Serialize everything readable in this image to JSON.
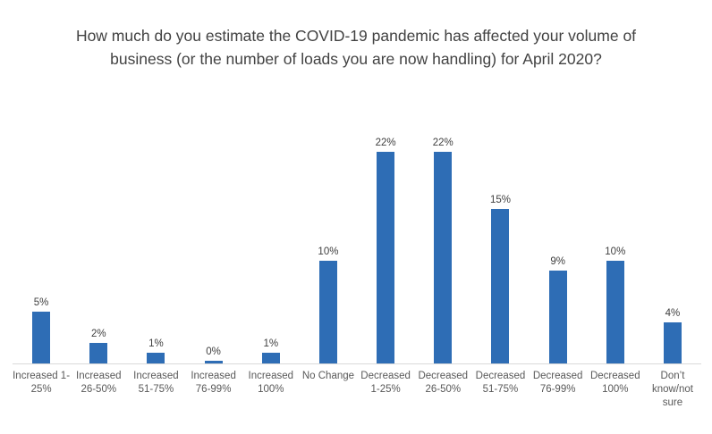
{
  "chart_data": {
    "type": "bar",
    "title": "How much do you estimate the COVID-19 pandemic has affected your volume of business (or the number of loads you are now handling) for April 2020?",
    "categories": [
      "Increased 1-25%",
      "Increased 26-50%",
      "Increased 51-75%",
      "Increased 76-99%",
      "Increased 100%",
      "No Change",
      "Decreased 1-25%",
      "Decreased 26-50%",
      "Decreased 51-75%",
      "Decreased 76-99%",
      "Decreased 100%",
      "Don’t know/not sure"
    ],
    "tick_labels": [
      [
        "Increased 1-",
        "25%"
      ],
      [
        "Increased",
        "26-50%"
      ],
      [
        "Increased",
        "51-75%"
      ],
      [
        "Increased",
        "76-99%"
      ],
      [
        "Increased",
        "100%"
      ],
      [
        "No Change"
      ],
      [
        "Decreased",
        "1-25%"
      ],
      [
        "Decreased",
        "26-50%"
      ],
      [
        "Decreased",
        "51-75%"
      ],
      [
        "Decreased",
        "76-99%"
      ],
      [
        "Decreased",
        "100%"
      ],
      [
        "Don’t",
        "know/not",
        "sure"
      ]
    ],
    "values": [
      5,
      2,
      1,
      0,
      1,
      10,
      22,
      22,
      15,
      9,
      10,
      4
    ],
    "value_labels": [
      "5%",
      "2%",
      "1%",
      "0%",
      "1%",
      "10%",
      "22%",
      "22%",
      "15%",
      "9%",
      "10%",
      "4%"
    ],
    "xlabel": "",
    "ylabel": "",
    "grid": false,
    "legend": "none",
    "y_axis_visible": false,
    "x_axis_line_visible": true,
    "bar_color": "#2E6DB5",
    "axis_line_color": "#D9D9D9",
    "title_color": "#424242",
    "data_label_color": "#404040",
    "tick_label_color": "#595959"
  }
}
